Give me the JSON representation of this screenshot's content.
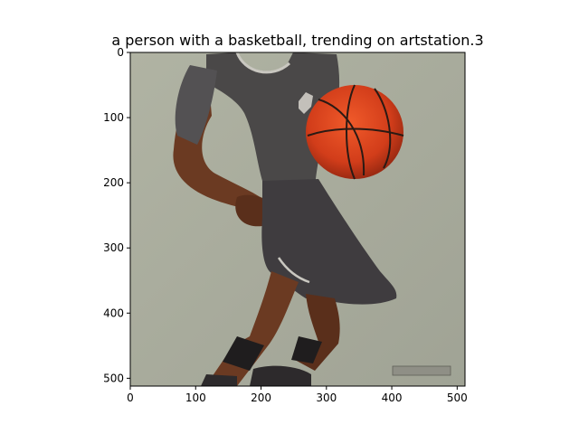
{
  "figure": {
    "title": "a person with a basketball,  trending on artstation.3"
  },
  "image": {
    "subject": "basketball-player",
    "signature_text": "",
    "colors": {
      "background": "#a7aa9a",
      "jersey": "#4a4848",
      "skin": "#6b3a22",
      "ball": "#d8421c",
      "shorts": "#3f3c3f"
    }
  },
  "axes": {
    "x_ticks": [
      "0",
      "100",
      "200",
      "300",
      "400",
      "500"
    ],
    "y_ticks": [
      "0",
      "100",
      "200",
      "300",
      "400",
      "500"
    ],
    "xlim": [
      0,
      512
    ],
    "ylim": [
      512,
      0
    ]
  }
}
